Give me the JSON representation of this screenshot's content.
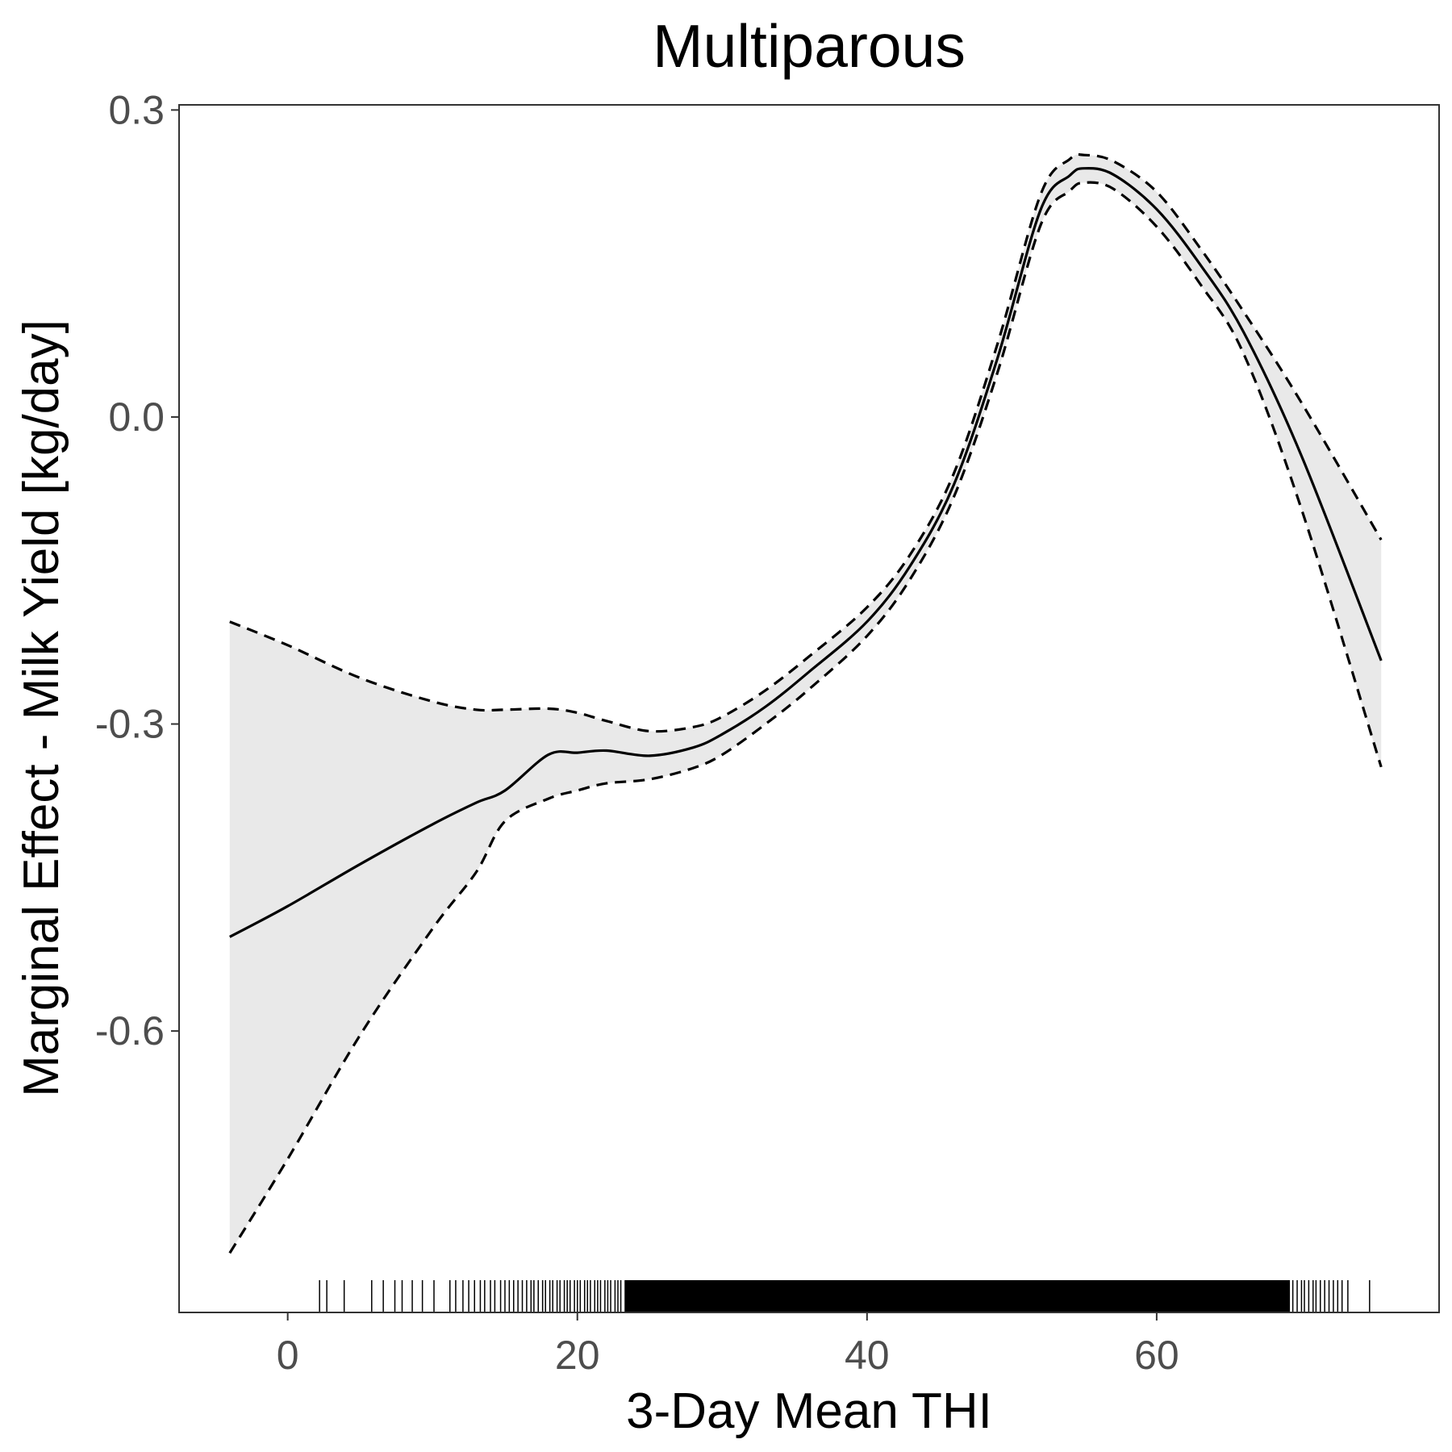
{
  "chart_data": {
    "type": "line",
    "title": "Multiparous",
    "xlabel": "3-Day Mean THI",
    "ylabel": "Marginal Effect - Milk Yield [kg/day]",
    "xlim": [
      -7.5,
      79.5
    ],
    "ylim": [
      -0.875,
      0.305
    ],
    "x_ticks": [
      0,
      20,
      40,
      60
    ],
    "x_tick_labels": [
      "0",
      "20",
      "40",
      "60"
    ],
    "y_ticks": [
      0.3,
      0.0,
      -0.3,
      -0.6
    ],
    "y_tick_labels": [
      "0.3",
      "0.0",
      "-0.3",
      "-0.6"
    ],
    "grid": false,
    "legend": "none",
    "colors": {
      "estimate": "#000000",
      "bounds": "#000000",
      "band": "#e9e9e9",
      "panel_border": "#333333",
      "tick_label": "#4d4d4d"
    },
    "series": [
      {
        "style": "solid",
        "x": [
          -4,
          0,
          5,
          10,
          13,
          15,
          18,
          20,
          22,
          25,
          28,
          30,
          33,
          36,
          40,
          43,
          46,
          49,
          52,
          54,
          55,
          57,
          60,
          63,
          66,
          70,
          75.5
        ],
        "y": [
          -0.508,
          -0.478,
          -0.437,
          -0.398,
          -0.377,
          -0.365,
          -0.33,
          -0.328,
          -0.326,
          -0.331,
          -0.323,
          -0.31,
          -0.283,
          -0.249,
          -0.2,
          -0.145,
          -0.066,
          0.057,
          0.203,
          0.236,
          0.243,
          0.237,
          0.203,
          0.149,
          0.083,
          -0.038,
          -0.238
        ]
      },
      {
        "style": "dashed",
        "x": [
          -4,
          0,
          5,
          10,
          13,
          15,
          18,
          20,
          22,
          25,
          28,
          30,
          33,
          36,
          40,
          43,
          46,
          49,
          52,
          54,
          55,
          57,
          60,
          63,
          66,
          70,
          75.5
        ],
        "y": [
          -0.2,
          -0.223,
          -0.255,
          -0.278,
          -0.286,
          -0.286,
          -0.285,
          -0.289,
          -0.297,
          -0.307,
          -0.303,
          -0.293,
          -0.267,
          -0.234,
          -0.186,
          -0.134,
          -0.055,
          0.071,
          0.218,
          0.252,
          0.256,
          0.25,
          0.22,
          0.165,
          0.103,
          0.014,
          -0.12
        ]
      },
      {
        "style": "dashed",
        "x": [
          -4,
          0,
          5,
          10,
          13,
          15,
          18,
          20,
          22,
          25,
          28,
          30,
          33,
          36,
          40,
          43,
          46,
          49,
          52,
          54,
          55,
          57,
          60,
          63,
          66,
          70,
          75.5
        ],
        "y": [
          -0.817,
          -0.725,
          -0.604,
          -0.5,
          -0.445,
          -0.395,
          -0.373,
          -0.365,
          -0.358,
          -0.354,
          -0.343,
          -0.33,
          -0.3,
          -0.266,
          -0.214,
          -0.158,
          -0.078,
          0.043,
          0.188,
          0.221,
          0.229,
          0.223,
          0.186,
          0.13,
          0.062,
          -0.09,
          -0.342
        ]
      }
    ],
    "rug_x": [
      2.2,
      2.7,
      3.9,
      5.8,
      6.6,
      7.4,
      7.9,
      8.6,
      9.3,
      10.1,
      11.2,
      11.6,
      12.1,
      12.5,
      12.9,
      13.3,
      13.6,
      14.0,
      14.3,
      14.7,
      15.0,
      15.3,
      15.6,
      15.9,
      16.2,
      16.5,
      16.8,
      17.0,
      17.3,
      17.6,
      17.8,
      18.1,
      18.3,
      18.6,
      18.8,
      19.1,
      19.3,
      19.5,
      19.8,
      20.0,
      20.2,
      20.5,
      20.7,
      20.9,
      21.2,
      21.4,
      21.6,
      21.9,
      22.1,
      22.3,
      22.6,
      22.8,
      23.0,
      23.3,
      69.4,
      69.7,
      70.0,
      70.2,
      70.5,
      70.8,
      71.0,
      71.3,
      71.6,
      71.9,
      72.2,
      72.5,
      72.8,
      73.2,
      74.7
    ],
    "rug_dense_x": [
      23.3,
      69.2
    ]
  }
}
